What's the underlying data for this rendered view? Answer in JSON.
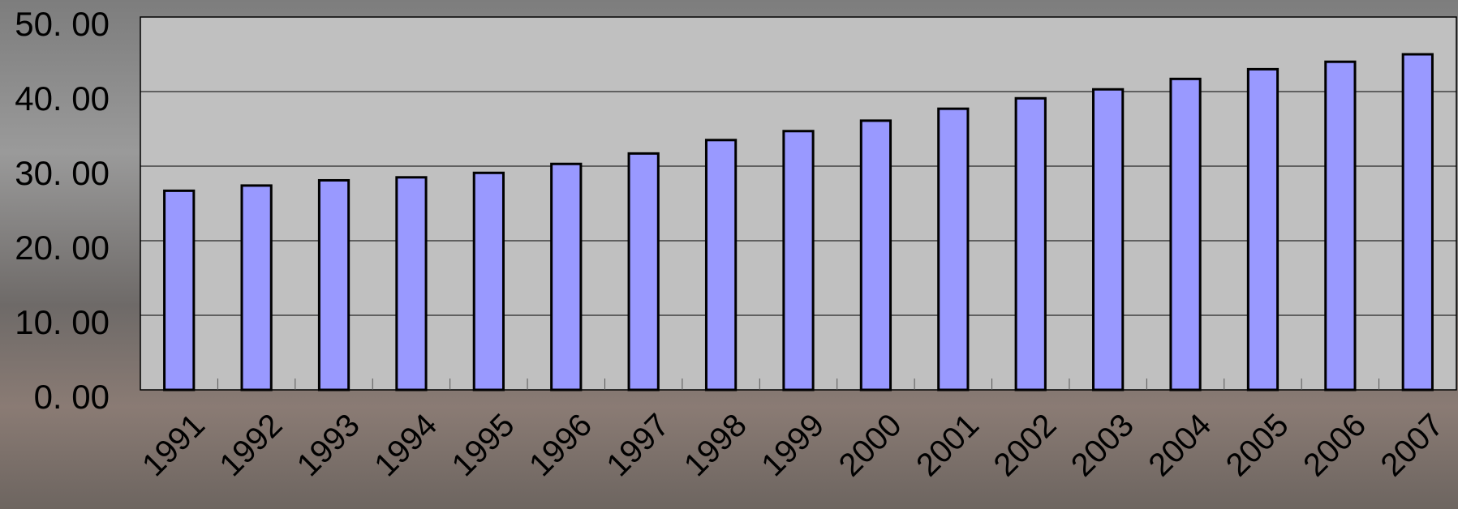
{
  "chart_data": {
    "type": "bar",
    "categories": [
      "1991",
      "1992",
      "1993",
      "1994",
      "1995",
      "1996",
      "1997",
      "1998",
      "1999",
      "2000",
      "2001",
      "2002",
      "2003",
      "2004",
      "2005",
      "2006",
      "2007"
    ],
    "values": [
      26.7,
      27.4,
      28.1,
      28.5,
      29.1,
      30.3,
      31.7,
      33.5,
      34.7,
      36.1,
      37.7,
      39.1,
      40.3,
      41.7,
      43.0,
      44.0,
      45.0
    ],
    "color": "#9999ff",
    "ylim": [
      0,
      50
    ],
    "yticks": [
      {
        "value": 0,
        "label": "0. 00"
      },
      {
        "value": 10,
        "label": "10. 00"
      },
      {
        "value": 20,
        "label": "20. 00"
      },
      {
        "value": 30,
        "label": "30. 00"
      },
      {
        "value": 40,
        "label": "40. 00"
      },
      {
        "value": 50,
        "label": "50. 00"
      }
    ],
    "grid": true
  }
}
